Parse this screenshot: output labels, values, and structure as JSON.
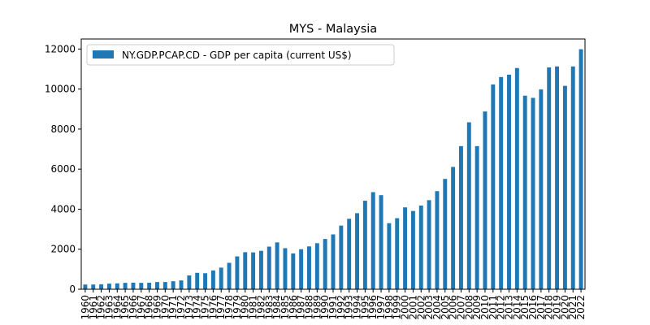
{
  "chart_data": {
    "type": "bar",
    "title": "MYS - Malaysia",
    "xlabel": "",
    "ylabel": "",
    "ylim": [
      0,
      12500
    ],
    "yticks": [
      0,
      2000,
      4000,
      6000,
      8000,
      10000,
      12000
    ],
    "grid": false,
    "legend_position": "top-left",
    "bar_color": "#1f77b4",
    "categories": [
      "1960",
      "1961",
      "1962",
      "1963",
      "1964",
      "1965",
      "1966",
      "1967",
      "1968",
      "1969",
      "1970",
      "1971",
      "1972",
      "1973",
      "1974",
      "1975",
      "1976",
      "1977",
      "1978",
      "1979",
      "1980",
      "1981",
      "1982",
      "1983",
      "1984",
      "1985",
      "1986",
      "1987",
      "1988",
      "1989",
      "1990",
      "1991",
      "1992",
      "1993",
      "1994",
      "1995",
      "1996",
      "1997",
      "1998",
      "1999",
      "2000",
      "2001",
      "2002",
      "2003",
      "2004",
      "2005",
      "2006",
      "2007",
      "2008",
      "2009",
      "2010",
      "2011",
      "2012",
      "2013",
      "2014",
      "2015",
      "2016",
      "2017",
      "2018",
      "2019",
      "2020",
      "2021",
      "2022"
    ],
    "series": [
      {
        "name": "NY.GDP.PCAP.CD - GDP per capita (current US$)",
        "values": [
          235,
          236,
          250,
          280,
          295,
          320,
          330,
          320,
          325,
          360,
          360,
          400,
          440,
          690,
          820,
          800,
          940,
          1080,
          1320,
          1640,
          1850,
          1840,
          1920,
          2130,
          2340,
          2050,
          1790,
          2000,
          2140,
          2300,
          2510,
          2740,
          3180,
          3520,
          3800,
          4420,
          4850,
          4700,
          3300,
          3550,
          4090,
          3910,
          4180,
          4450,
          4900,
          5510,
          6110,
          7150,
          8340,
          7150,
          8880,
          10230,
          10600,
          10720,
          11050,
          9670,
          9560,
          9980,
          11080,
          11130,
          10160,
          11130,
          11990
        ]
      }
    ]
  }
}
